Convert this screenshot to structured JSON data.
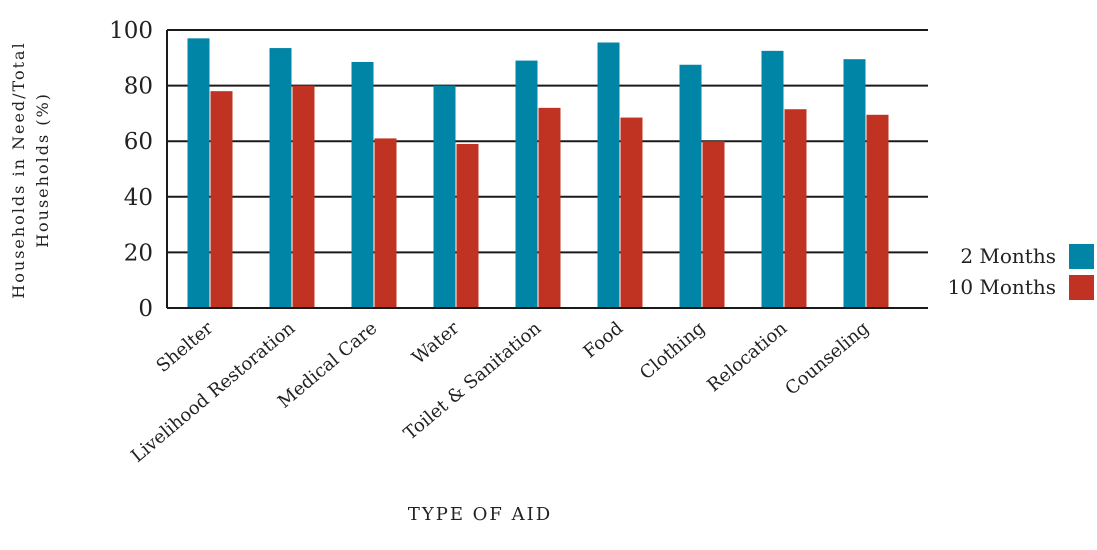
{
  "chart_data": {
    "type": "bar",
    "xlabel": "TYPE OF AID",
    "ylabel_line1": "Households in Need/Total",
    "ylabel_line2": "Households (%)",
    "ylim": [
      0,
      100
    ],
    "yticks": [
      "0",
      "20",
      "40",
      "60",
      "80",
      "100"
    ],
    "grid": "horizontal",
    "legend_position": "right",
    "categories": [
      "Shelter",
      "Livelihood Restoration",
      "Medical Care",
      "Water",
      "Toilet & Sanitation",
      "Food",
      "Clothing",
      "Relocation",
      "Counseling"
    ],
    "series": [
      {
        "name": "2 Months",
        "color": "#0085a6",
        "values": [
          97,
          93.5,
          88.5,
          80,
          89,
          95.5,
          87.5,
          92.5,
          89.5
        ]
      },
      {
        "name": "10 Months",
        "color": "#c03221",
        "values": [
          78,
          80,
          61,
          59,
          72,
          68.5,
          60,
          71.5,
          69.5
        ]
      }
    ]
  }
}
